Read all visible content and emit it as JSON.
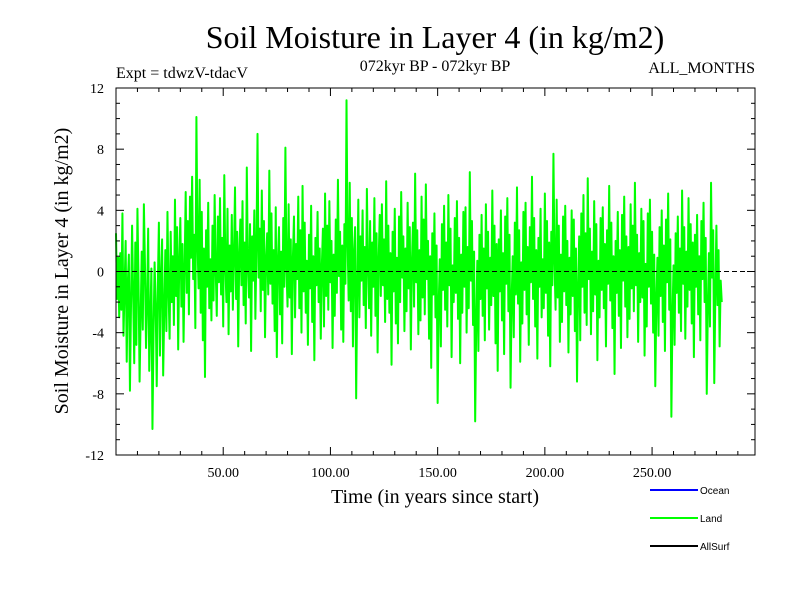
{
  "chart_data": {
    "type": "line",
    "title": "Soil Moisture in Layer 4 (in kg/m2)",
    "subtitle_left": "Expt = tdwzV-tdacV",
    "subtitle_center": "072kyr BP - 072kyr BP",
    "subtitle_right": "ALL_MONTHS",
    "xlabel": "Time (in years since start)",
    "ylabel": "Soil Moisture in Layer 4 (in kg/m2)",
    "xlim": [
      0,
      298
    ],
    "ylim": [
      -12,
      12
    ],
    "x_ticks": [
      50,
      100,
      150,
      200,
      250
    ],
    "x_tick_labels": [
      "50.00",
      "100.00",
      "150.00",
      "200.00",
      "250.00"
    ],
    "y_ticks": [
      -12,
      -8,
      -4,
      0,
      4,
      8,
      12
    ],
    "y_tick_labels": [
      "-12",
      "-8",
      "-4",
      "0",
      "4",
      "8",
      "12"
    ],
    "zero_line": 0,
    "legend_position": "bottom-right",
    "series": [
      {
        "name": "Ocean",
        "color": "#0000ff",
        "values": []
      },
      {
        "name": "Land",
        "color": "#00ff00",
        "x_start": 0,
        "x_step": 0.5,
        "values": [
          2.5,
          -1.8,
          0.9,
          -3.0,
          1.2,
          -2.5,
          3.8,
          -4.2,
          -1.0,
          2.0,
          -5.9,
          -0.8,
          1.1,
          -7.8,
          -2.2,
          3.0,
          -1.5,
          -6.0,
          1.9,
          -4.8,
          4.1,
          -0.6,
          -7.2,
          -2.9,
          1.3,
          -3.8,
          4.4,
          0.5,
          -5.0,
          -2.0,
          2.8,
          -6.5,
          -3.3,
          0.2,
          -10.3,
          -4.0,
          0.6,
          -2.2,
          -7.5,
          -1.0,
          3.2,
          -5.5,
          -0.4,
          2.1,
          -6.8,
          -2.6,
          1.4,
          -3.9,
          3.9,
          -1.2,
          -4.4,
          2.6,
          -2.0,
          1.0,
          -3.5,
          4.7,
          -1.6,
          2.9,
          -5.1,
          0.7,
          3.5,
          -2.3,
          1.8,
          -4.6,
          0.2,
          5.2,
          -1.4,
          3.3,
          -2.8,
          4.9,
          0.9,
          6.2,
          -0.5,
          2.4,
          -3.7,
          10.1,
          2.0,
          -1.1,
          6.0,
          -2.7,
          3.9,
          -4.5,
          1.5,
          -6.9,
          2.7,
          -1.0,
          4.5,
          -2.4,
          0.8,
          -3.2,
          3.0,
          -1.9,
          5.0,
          0.1,
          -2.9,
          3.6,
          -0.7,
          4.8,
          -1.5,
          2.2,
          -3.6,
          6.3,
          0.4,
          -2.0,
          4.1,
          -4.1,
          1.7,
          -1.3,
          3.7,
          -2.5,
          0.9,
          5.5,
          -1.8,
          2.6,
          -4.9,
          1.2,
          3.4,
          -0.9,
          4.6,
          -2.2,
          1.9,
          -3.4,
          6.8,
          0.3,
          -1.7,
          3.1,
          -5.2,
          2.3,
          -0.6,
          4.0,
          -3.1,
          1.6,
          9.0,
          -0.4,
          2.8,
          -2.6,
          5.3,
          -1.2,
          3.3,
          -4.3,
          0.8,
          2.5,
          -1.5,
          6.6,
          -0.8,
          3.8,
          -2.1,
          1.4,
          -3.9,
          4.2,
          -5.6,
          0.6,
          2.9,
          -2.8,
          1.3,
          -4.7,
          3.5,
          -1.0,
          8.1,
          0.2,
          -2.3,
          4.4,
          -1.7,
          2.1,
          -5.4,
          0.9,
          3.6,
          -3.0,
          1.8,
          -0.5,
          4.9,
          -2.4,
          2.7,
          -4.0,
          5.6,
          -1.3,
          3.2,
          -2.7,
          0.7,
          -4.8,
          2.4,
          -1.1,
          4.3,
          -3.3,
          1.0,
          -5.8,
          2.2,
          -0.9,
          3.9,
          -2.0,
          1.5,
          -4.4,
          0.4,
          2.8,
          -3.6,
          5.1,
          -1.6,
          3.0,
          -2.5,
          4.6,
          -0.7,
          2.0,
          -5.0,
          1.1,
          -2.9,
          3.4,
          -1.4,
          6.0,
          -0.3,
          2.6,
          -3.8,
          1.7,
          -4.6,
          3.1,
          -0.8,
          11.2,
          1.9,
          -1.9,
          5.8,
          -2.6,
          3.5,
          -4.9,
          1.3,
          2.9,
          -8.3,
          -1.2,
          4.7,
          -3.0,
          2.3,
          -0.6,
          4.0,
          -2.2,
          1.6,
          -3.7,
          5.4,
          0.5,
          -2.4,
          3.3,
          -4.2,
          1.9,
          -1.0,
          4.8,
          -2.9,
          2.5,
          -5.3,
          0.8,
          3.7,
          -1.6,
          4.4,
          -0.9,
          2.1,
          -3.3,
          5.9,
          -1.8,
          3.0,
          -2.7,
          1.2,
          -6.1,
          2.6,
          -1.3,
          4.1,
          -3.4,
          0.9,
          -4.7,
          3.6,
          -2.0,
          5.2,
          -0.4,
          2.3,
          -3.9,
          1.5,
          -2.6,
          4.5,
          -1.1,
          2.9,
          -5.1,
          0.6,
          3.2,
          -2.3,
          6.4,
          -0.7,
          2.7,
          -4.1,
          1.4,
          -3.2,
          4.9,
          -1.7,
          3.4,
          -2.8,
          5.7,
          -0.5,
          2.0,
          -4.4,
          1.0,
          -6.3,
          2.5,
          -1.5,
          3.8,
          -3.0,
          1.7,
          -8.6,
          -2.1,
          0.8,
          -4.9,
          3.1,
          -1.2,
          4.3,
          -2.5,
          1.9,
          -3.6,
          5.0,
          -0.9,
          2.8,
          -5.6,
          0.4,
          -2.0,
          3.5,
          -1.4,
          4.6,
          -3.1,
          2.2,
          -6.0,
          1.1,
          -2.7,
          3.9,
          -1.0,
          4.2,
          -4.0,
          1.6,
          -2.4,
          6.5,
          -0.6,
          3.3,
          -3.5,
          1.3,
          -9.8,
          -3.3,
          0.7,
          -5.2,
          2.4,
          -1.8,
          3.7,
          -2.9,
          1.5,
          -4.5,
          4.4,
          -1.1,
          2.6,
          -3.8,
          0.9,
          -2.2,
          5.3,
          -1.6,
          3.0,
          -4.7,
          1.8,
          -6.5,
          2.1,
          -1.3,
          4.0,
          -3.2,
          1.2,
          -5.4,
          3.6,
          -0.8,
          4.8,
          -2.6,
          2.4,
          -7.6,
          -1.9,
          1.0,
          -4.3,
          3.2,
          -1.5,
          5.5,
          -2.1,
          2.7,
          -5.9,
          0.6,
          -3.4,
          3.9,
          -1.2,
          4.5,
          -2.8,
          1.6,
          -4.8,
          2.9,
          -0.7,
          6.2,
          -1.8,
          3.5,
          -3.6,
          1.4,
          -5.7,
          2.2,
          -1.0,
          4.1,
          -3.0,
          0.8,
          -2.4,
          5.1,
          -1.4,
          3.3,
          -4.2,
          1.9,
          -6.2,
          2.6,
          -0.9,
          7.7,
          0.6,
          -2.5,
          4.7,
          -1.7,
          3.0,
          -4.6,
          1.1,
          -3.3,
          3.6,
          -1.3,
          4.3,
          -2.2,
          2.0,
          -5.3,
          0.9,
          -2.8,
          4.0,
          -1.6,
          3.4,
          -3.9,
          1.5,
          -7.2,
          -1.1,
          2.3,
          -4.5,
          3.8,
          -1.0,
          5.0,
          -2.7,
          2.5,
          -3.5,
          6.1,
          -0.5,
          2.8,
          -4.1,
          1.3,
          -2.6,
          4.6,
          -1.5,
          3.1,
          -5.8,
          0.7,
          -3.0,
          3.5,
          -1.2,
          4.2,
          -2.4,
          1.8,
          -4.9,
          2.7,
          -0.8,
          5.6,
          -1.9,
          3.2,
          -3.7,
          1.0,
          -6.7,
          2.0,
          -1.4,
          3.9,
          -2.9,
          1.4,
          -5.0,
          3.7,
          -0.6,
          4.9,
          -2.3,
          2.3,
          -4.3,
          1.6,
          -3.1,
          4.4,
          -1.1,
          3.0,
          -2.6,
          5.8,
          -0.9,
          2.4,
          -4.6,
          1.2,
          -2.0,
          4.1,
          -1.7,
          3.3,
          -5.5,
          0.5,
          -3.6,
          3.8,
          -1.0,
          4.7,
          -2.1,
          2.6,
          -4.0,
          1.1,
          -7.5,
          -1.8,
          0.9,
          -4.2,
          2.9,
          -1.6,
          4.0,
          -3.3,
          1.7,
          -5.2,
          3.4,
          -0.7,
          5.1,
          -2.5,
          2.1,
          -9.5,
          -3.1,
          0.4,
          -4.8,
          2.5,
          -1.4,
          3.6,
          -2.7,
          1.5,
          -3.9,
          5.3,
          -0.8,
          2.9,
          -4.4,
          1.3,
          -2.3,
          4.8,
          -1.2,
          3.1,
          -3.4,
          1.9,
          -5.6,
          2.4,
          -1.0,
          3.7,
          -2.8,
          1.0,
          -4.5,
          3.3,
          -0.5,
          4.5,
          -2.0,
          2.2,
          -8.0,
          -2.4,
          1.2,
          -3.6,
          5.8,
          -0.4,
          2.7,
          -7.3,
          -1.5,
          3.0,
          -2.2,
          1.4,
          -4.9,
          -0.6,
          -2.0
        ]
      },
      {
        "name": "AllSurf",
        "color": "#000000",
        "values": []
      }
    ]
  }
}
